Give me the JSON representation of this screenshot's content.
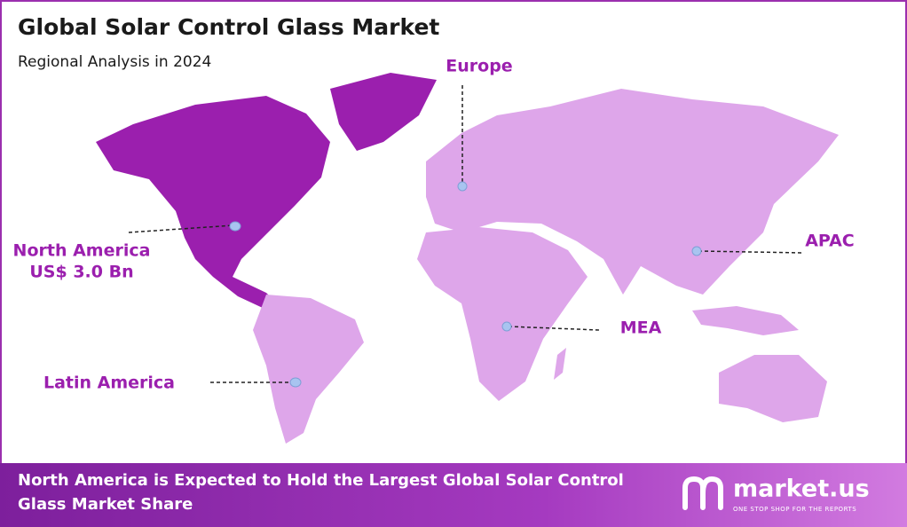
{
  "header": {
    "title": "Global Solar Control Glass Market",
    "subtitle": "Regional Analysis in 2024"
  },
  "regions": [
    {
      "label": "North America",
      "value": "US$ 3.0 Bn"
    },
    {
      "label": "Europe"
    },
    {
      "label": "APAC"
    },
    {
      "label": "MEA"
    },
    {
      "label": "Latin America"
    }
  ],
  "footer": {
    "text": "North America is Expected to Hold the Largest Global Solar Control Glass Market Share",
    "logo": "market.us",
    "tagline": "ONE STOP SHOP FOR THE REPORTS"
  }
}
